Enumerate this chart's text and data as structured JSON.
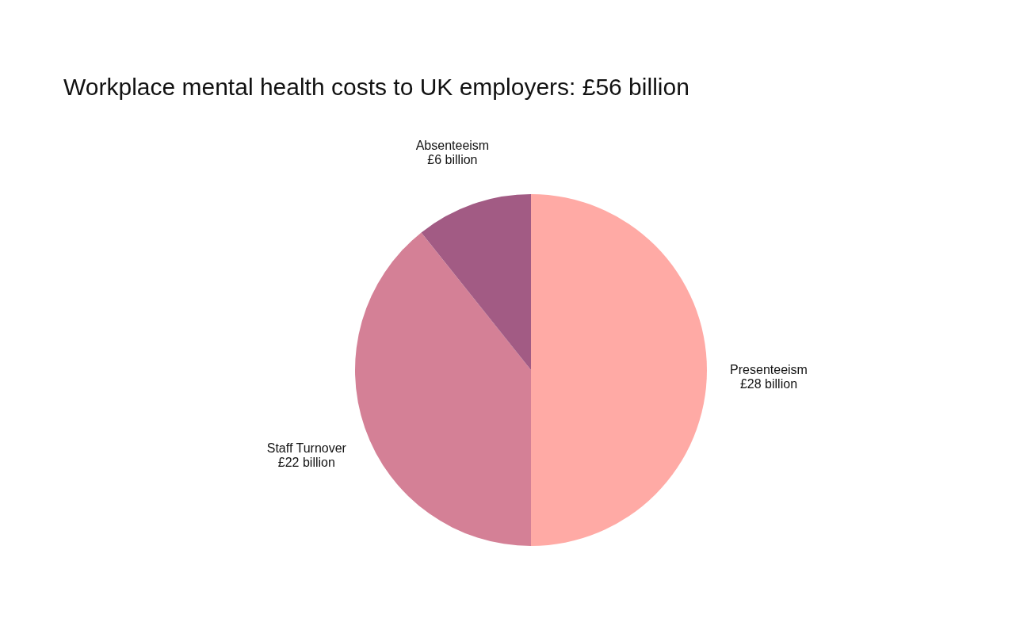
{
  "chart_data": {
    "type": "pie",
    "title": "Workplace mental health costs to UK employers: £56 billion",
    "categories": [
      "Presenteeism",
      "Staff Turnover",
      "Absenteeism"
    ],
    "values": [
      28,
      22,
      6
    ],
    "colors": [
      "#ffaaa5",
      "#d48096",
      "#a25b84"
    ],
    "value_labels": [
      "£28 billion",
      "£22 billion",
      "£6 billion"
    ],
    "legend": false
  }
}
